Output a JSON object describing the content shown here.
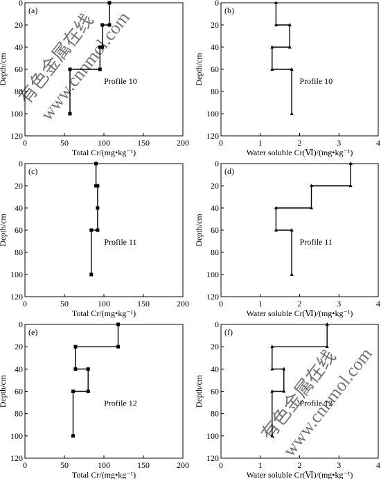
{
  "watermark": {
    "line1": "有色金属在线",
    "line2": "www.cnnmol.com"
  },
  "chart_data": [
    {
      "type": "line",
      "panel_label": "(a)",
      "title": "",
      "annotation": "Profile 10",
      "xlabel": "Total Cr/(mg•kg⁻¹)",
      "ylabel": "Depth/cm",
      "xlim": [
        0,
        200
      ],
      "ylim": [
        0,
        120
      ],
      "y_inverted": true,
      "xticks": [
        0,
        50,
        100,
        150,
        200
      ],
      "yticks": [
        0,
        20,
        40,
        60,
        80,
        100,
        120
      ],
      "grid": false,
      "marker": "square",
      "series": [
        {
          "points": [
            {
              "x": 107,
              "y": 0
            },
            {
              "x": 107,
              "y": 20
            },
            {
              "x": 98,
              "y": 20
            },
            {
              "x": 98,
              "y": 40
            },
            {
              "x": 95,
              "y": 40
            },
            {
              "x": 95,
              "y": 60
            },
            {
              "x": 57,
              "y": 60
            },
            {
              "x": 57,
              "y": 100
            }
          ]
        }
      ]
    },
    {
      "type": "line",
      "panel_label": "(b)",
      "title": "",
      "annotation": "Profile 10",
      "xlabel": "Water soluble Cr(Ⅵ)/(mg•kg⁻¹)",
      "ylabel": "Depth/cm",
      "xlim": [
        0,
        4
      ],
      "ylim": [
        0,
        120
      ],
      "y_inverted": true,
      "xticks": [
        0,
        1,
        2,
        3,
        4
      ],
      "yticks": [
        0,
        20,
        40,
        60,
        80,
        100,
        120
      ],
      "grid": false,
      "marker": "triangle",
      "series": [
        {
          "points": [
            {
              "x": 1.4,
              "y": 0
            },
            {
              "x": 1.4,
              "y": 20
            },
            {
              "x": 1.75,
              "y": 20
            },
            {
              "x": 1.75,
              "y": 40
            },
            {
              "x": 1.3,
              "y": 40
            },
            {
              "x": 1.3,
              "y": 60
            },
            {
              "x": 1.8,
              "y": 60
            },
            {
              "x": 1.8,
              "y": 100
            }
          ]
        }
      ]
    },
    {
      "type": "line",
      "panel_label": "(c)",
      "title": "",
      "annotation": "Profile 11",
      "xlabel": "Total Cr/(mg•kg⁻¹)",
      "ylabel": "Depth/cm",
      "xlim": [
        0,
        200
      ],
      "ylim": [
        0,
        120
      ],
      "y_inverted": true,
      "xticks": [
        0,
        50,
        100,
        150,
        200
      ],
      "yticks": [
        0,
        20,
        40,
        60,
        80,
        100,
        120
      ],
      "grid": false,
      "marker": "square",
      "series": [
        {
          "points": [
            {
              "x": 90,
              "y": 0
            },
            {
              "x": 90,
              "y": 20
            },
            {
              "x": 92,
              "y": 20
            },
            {
              "x": 92,
              "y": 40
            },
            {
              "x": 92,
              "y": 60
            },
            {
              "x": 84,
              "y": 60
            },
            {
              "x": 84,
              "y": 100
            }
          ]
        }
      ]
    },
    {
      "type": "line",
      "panel_label": "(d)",
      "title": "",
      "annotation": "Profile 11",
      "xlabel": "Water soluble Cr(Ⅵ)/(mg•kg⁻¹)",
      "ylabel": "Depth/cm",
      "xlim": [
        0,
        4
      ],
      "ylim": [
        0,
        120
      ],
      "y_inverted": true,
      "xticks": [
        0,
        1,
        2,
        3,
        4
      ],
      "yticks": [
        0,
        20,
        40,
        60,
        80,
        100,
        120
      ],
      "grid": false,
      "marker": "triangle",
      "series": [
        {
          "points": [
            {
              "x": 3.3,
              "y": 0
            },
            {
              "x": 3.3,
              "y": 20
            },
            {
              "x": 2.3,
              "y": 20
            },
            {
              "x": 2.3,
              "y": 40
            },
            {
              "x": 1.4,
              "y": 40
            },
            {
              "x": 1.4,
              "y": 60
            },
            {
              "x": 1.8,
              "y": 60
            },
            {
              "x": 1.8,
              "y": 100
            }
          ]
        }
      ]
    },
    {
      "type": "line",
      "panel_label": "(e)",
      "title": "",
      "annotation": "Profile 12",
      "xlabel": "Total Cr/(mg•kg⁻¹)",
      "ylabel": "Depth/cm",
      "xlim": [
        0,
        200
      ],
      "ylim": [
        0,
        120
      ],
      "y_inverted": true,
      "xticks": [
        0,
        50,
        100,
        150,
        200
      ],
      "yticks": [
        0,
        20,
        40,
        60,
        80,
        100,
        120
      ],
      "grid": false,
      "marker": "square",
      "series": [
        {
          "points": [
            {
              "x": 118,
              "y": 0
            },
            {
              "x": 118,
              "y": 20
            },
            {
              "x": 64,
              "y": 20
            },
            {
              "x": 64,
              "y": 40
            },
            {
              "x": 80,
              "y": 40
            },
            {
              "x": 80,
              "y": 60
            },
            {
              "x": 61,
              "y": 60
            },
            {
              "x": 61,
              "y": 100
            }
          ]
        }
      ]
    },
    {
      "type": "line",
      "panel_label": "(f)",
      "title": "",
      "annotation": "Profile 12",
      "xlabel": "Water soluble Cr(Ⅵ)/(mg•kg⁻¹)",
      "ylabel": "Depth/cm",
      "xlim": [
        0,
        4
      ],
      "ylim": [
        0,
        120
      ],
      "y_inverted": true,
      "xticks": [
        0,
        1,
        2,
        3,
        4
      ],
      "yticks": [
        0,
        20,
        40,
        60,
        80,
        100,
        120
      ],
      "grid": false,
      "marker": "triangle",
      "series": [
        {
          "points": [
            {
              "x": 2.7,
              "y": 0
            },
            {
              "x": 2.7,
              "y": 20
            },
            {
              "x": 1.3,
              "y": 20
            },
            {
              "x": 1.3,
              "y": 40
            },
            {
              "x": 1.6,
              "y": 40
            },
            {
              "x": 1.6,
              "y": 60
            },
            {
              "x": 1.3,
              "y": 60
            },
            {
              "x": 1.3,
              "y": 100
            }
          ]
        }
      ]
    }
  ]
}
